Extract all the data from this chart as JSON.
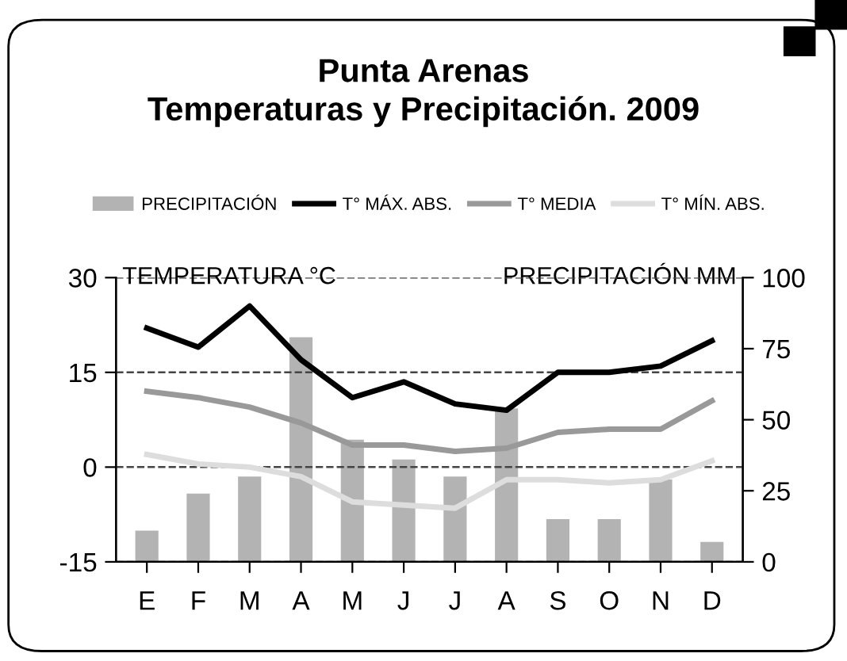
{
  "chart_data": {
    "type": "line",
    "title": "Punta Arenas\nTemperaturas y Precipitación. 2009",
    "categories": [
      "E",
      "F",
      "M",
      "A",
      "M",
      "J",
      "J",
      "A",
      "S",
      "O",
      "N",
      "D"
    ],
    "series": [
      {
        "name": "PRECIPITACIÓN",
        "type": "bar",
        "axis": "y2",
        "color": "#b3b3b4",
        "values": [
          11,
          24,
          30,
          79,
          43,
          36,
          30,
          54,
          15,
          15,
          29,
          7
        ]
      },
      {
        "name": "T° MÁX. ABS.",
        "color": "#000000",
        "values": [
          22,
          19,
          25.5,
          17,
          11,
          13.5,
          10,
          9,
          15,
          15,
          16,
          20
        ]
      },
      {
        "name": "T° MEDIA",
        "color": "#999999",
        "values": [
          12,
          11,
          9.5,
          7,
          3.5,
          3.5,
          2.5,
          3,
          5.5,
          6,
          6,
          10.5
        ]
      },
      {
        "name": "T° MÍN. ABS.",
        "color": "#dddddd",
        "values": [
          2,
          0.5,
          0,
          -1.5,
          -5.5,
          -6,
          -6.5,
          -2,
          -2,
          -2.5,
          -2,
          1
        ]
      }
    ],
    "ylabel": "TEMPERATURA °C",
    "y2label": "PRECIPITACIÓN MM",
    "ylim": [
      -15,
      30
    ],
    "yticks": [
      -15,
      0,
      15,
      30
    ],
    "y2lim": [
      0,
      100
    ],
    "y2ticks": [
      0,
      25,
      50,
      75,
      100
    ],
    "grid": "y",
    "legend": "top",
    "marker": "none",
    "line_style": "solid"
  }
}
